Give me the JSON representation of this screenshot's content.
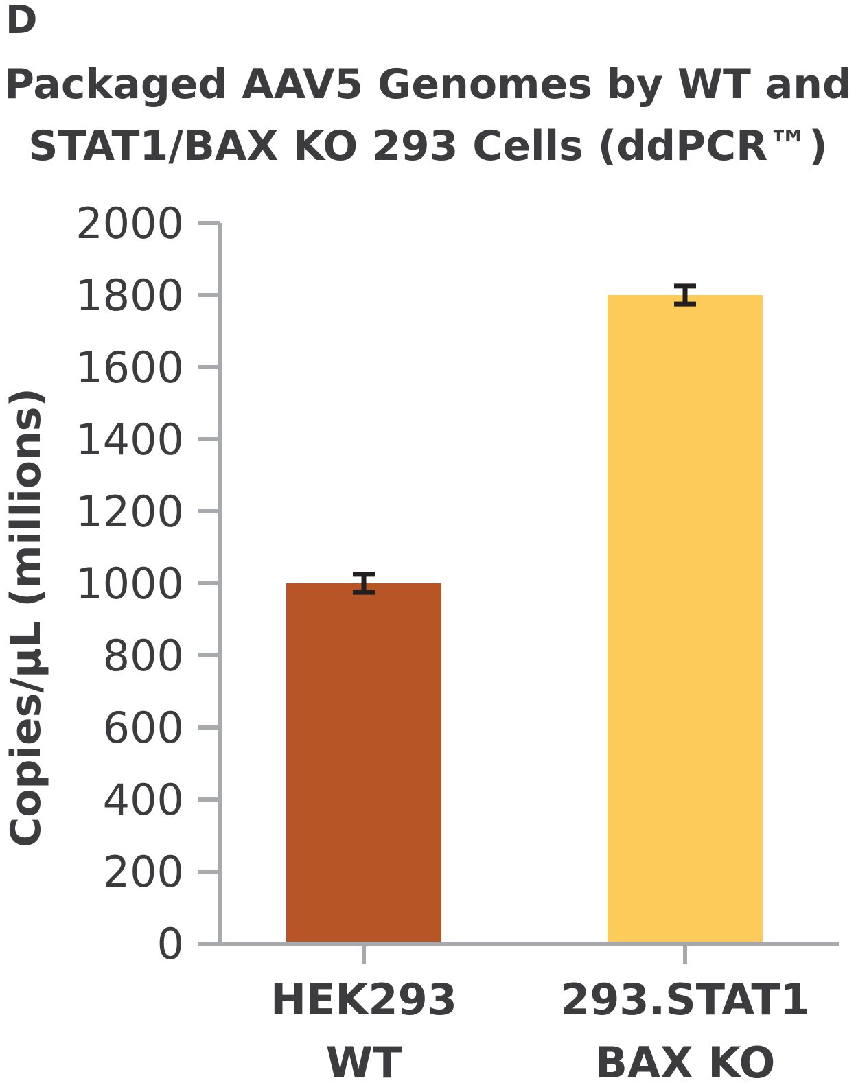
{
  "panel_label": "D",
  "colors": {
    "axis": "#a7a9ac",
    "text": "#3c3c3e",
    "error_bar": "#231f20"
  },
  "chart_data": {
    "type": "bar",
    "title_lines": [
      "Packaged AAV5 Genomes by WT and",
      "STAT1/BAX KO 293 Cells (ddPCR™)"
    ],
    "ylabel": "Copies/μL (millions)",
    "xlabel": "",
    "ylim": [
      0,
      2000
    ],
    "yticks": [
      0,
      200,
      400,
      600,
      800,
      1000,
      1200,
      1400,
      1600,
      1800,
      2000
    ],
    "grid": false,
    "categories": [
      {
        "lines": [
          "HEK293",
          "WT"
        ],
        "value": 1000,
        "error": 25,
        "color": "#b85527"
      },
      {
        "lines": [
          "293.STAT1",
          "BAX KO"
        ],
        "value": 1800,
        "error": 25,
        "color": "#fdcb5a"
      }
    ]
  }
}
